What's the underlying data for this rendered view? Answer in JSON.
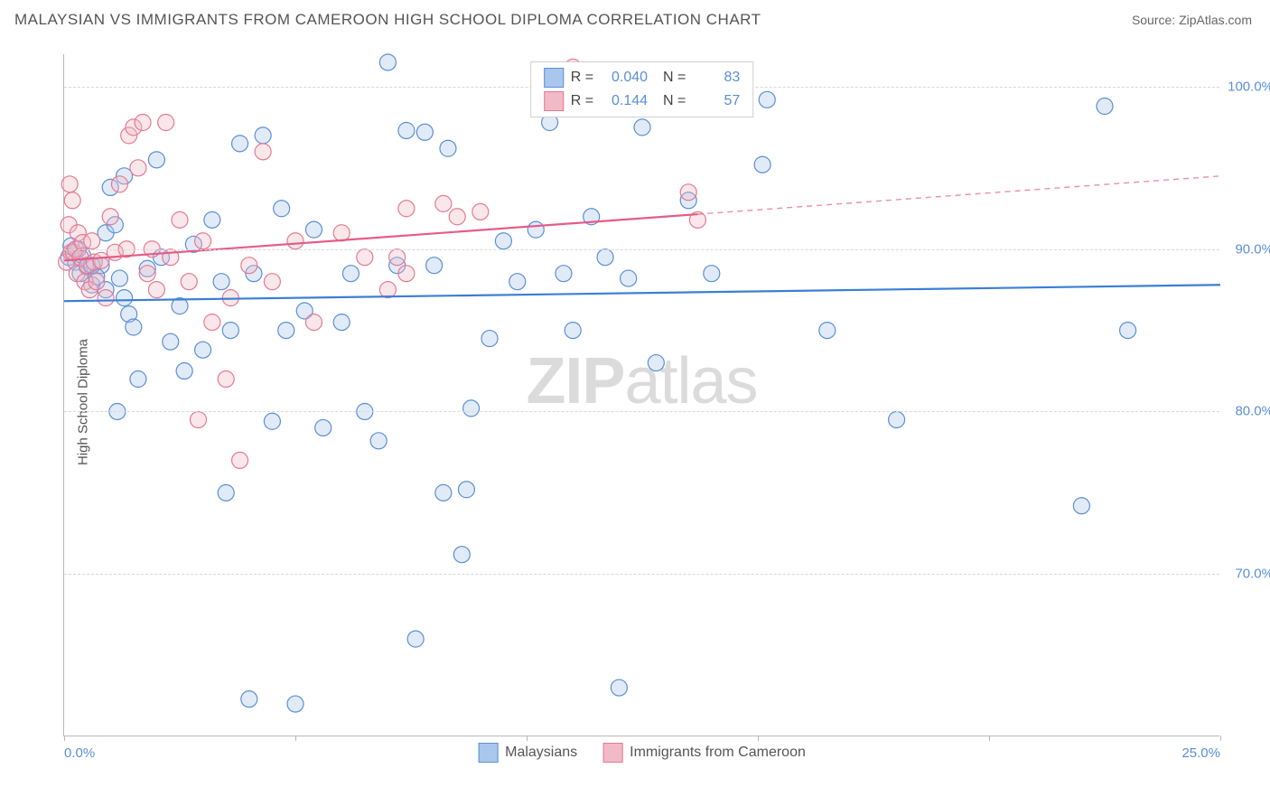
{
  "header": {
    "title": "MALAYSIAN VS IMMIGRANTS FROM CAMEROON HIGH SCHOOL DIPLOMA CORRELATION CHART",
    "source": "Source: ZipAtlas.com"
  },
  "watermark": {
    "part1": "ZIP",
    "part2": "atlas"
  },
  "chart": {
    "type": "scatter",
    "y_axis_label": "High School Diploma",
    "background_color": "#ffffff",
    "grid_color": "#d8d8d8",
    "axis_color": "#b8b8b8",
    "tick_label_color": "#5b8fd6",
    "tick_label_fontsize": 15,
    "xlim": [
      0,
      25
    ],
    "ylim": [
      60,
      102
    ],
    "x_ticks": [
      0,
      5,
      10,
      15,
      20,
      25
    ],
    "x_tick_labels_shown": {
      "0": "0.0%",
      "25": "25.0%"
    },
    "y_gridlines": [
      70,
      80,
      90,
      100
    ],
    "y_tick_labels": {
      "70": "70.0%",
      "80": "80.0%",
      "90": "90.0%",
      "100": "100.0%"
    },
    "marker_radius": 9,
    "marker_stroke_width": 1.2,
    "marker_fill_opacity": 0.35,
    "trend_line_width": 2.2,
    "series": [
      {
        "name": "Malaysians",
        "color_fill": "#a9c7ec",
        "color_stroke": "#5b8fd6",
        "trend_color": "#3b7fd6",
        "r": "0.040",
        "n": "83",
        "trend": {
          "x1": 0,
          "y1": 86.8,
          "x2": 25,
          "y2": 87.8,
          "solid_end_x": 25
        },
        "points": [
          [
            0.1,
            89.5
          ],
          [
            0.15,
            90.2
          ],
          [
            0.2,
            89.8
          ],
          [
            0.25,
            89.2
          ],
          [
            0.3,
            90.0
          ],
          [
            0.35,
            88.5
          ],
          [
            0.4,
            89.6
          ],
          [
            0.5,
            88.9
          ],
          [
            0.6,
            87.8
          ],
          [
            0.8,
            89.0
          ],
          [
            0.9,
            91.0
          ],
          [
            1.0,
            93.8
          ],
          [
            1.1,
            91.5
          ],
          [
            1.2,
            88.2
          ],
          [
            1.3,
            94.5
          ],
          [
            1.4,
            86.0
          ],
          [
            1.5,
            85.2
          ],
          [
            1.6,
            82.0
          ],
          [
            1.8,
            88.8
          ],
          [
            2.0,
            95.5
          ],
          [
            2.1,
            89.5
          ],
          [
            2.3,
            84.3
          ],
          [
            2.5,
            86.5
          ],
          [
            2.6,
            82.5
          ],
          [
            2.8,
            90.3
          ],
          [
            3.0,
            83.8
          ],
          [
            3.2,
            91.8
          ],
          [
            3.4,
            88.0
          ],
          [
            3.5,
            75.0
          ],
          [
            3.6,
            85.0
          ],
          [
            3.8,
            96.5
          ],
          [
            4.0,
            62.3
          ],
          [
            4.1,
            88.5
          ],
          [
            4.3,
            97.0
          ],
          [
            4.5,
            79.4
          ],
          [
            4.7,
            92.5
          ],
          [
            4.8,
            85.0
          ],
          [
            5.0,
            62.0
          ],
          [
            5.2,
            86.2
          ],
          [
            5.4,
            91.2
          ],
          [
            5.6,
            79.0
          ],
          [
            6.0,
            85.5
          ],
          [
            6.2,
            88.5
          ],
          [
            6.5,
            80.0
          ],
          [
            6.8,
            78.2
          ],
          [
            7.0,
            101.5
          ],
          [
            7.2,
            89.0
          ],
          [
            7.4,
            97.3
          ],
          [
            7.6,
            66.0
          ],
          [
            7.8,
            97.2
          ],
          [
            8.0,
            89.0
          ],
          [
            8.2,
            75.0
          ],
          [
            8.3,
            96.2
          ],
          [
            8.6,
            71.2
          ],
          [
            8.8,
            80.2
          ],
          [
            8.7,
            75.2
          ],
          [
            9.2,
            84.5
          ],
          [
            9.5,
            90.5
          ],
          [
            9.8,
            88.0
          ],
          [
            10.2,
            91.2
          ],
          [
            10.5,
            97.8
          ],
          [
            10.8,
            88.5
          ],
          [
            11.0,
            85.0
          ],
          [
            11.4,
            92.0
          ],
          [
            11.7,
            89.5
          ],
          [
            12.0,
            63.0
          ],
          [
            12.2,
            88.2
          ],
          [
            12.8,
            83.0
          ],
          [
            12.5,
            97.5
          ],
          [
            13.5,
            93.0
          ],
          [
            14.0,
            88.5
          ],
          [
            15.1,
            95.2
          ],
          [
            15.2,
            99.2
          ],
          [
            16.5,
            85.0
          ],
          [
            18.0,
            79.5
          ],
          [
            22.0,
            74.2
          ],
          [
            22.5,
            98.8
          ],
          [
            23.0,
            85.0
          ],
          [
            0.6,
            89.0
          ],
          [
            0.7,
            88.3
          ],
          [
            0.9,
            87.5
          ],
          [
            1.3,
            87.0
          ],
          [
            1.15,
            80.0
          ]
        ]
      },
      {
        "name": "Immigrants from Cameroon",
        "color_fill": "#f2b9c6",
        "color_stroke": "#e47a94",
        "trend_color": "#e45d87",
        "r": "0.144",
        "n": "57",
        "trend": {
          "x1": 0,
          "y1": 89.3,
          "x2": 25,
          "y2": 94.5,
          "solid_end_x": 13.7
        },
        "points": [
          [
            0.05,
            89.2
          ],
          [
            0.1,
            91.5
          ],
          [
            0.12,
            94.0
          ],
          [
            0.15,
            89.8
          ],
          [
            0.18,
            93.0
          ],
          [
            0.2,
            89.8
          ],
          [
            0.25,
            90.0
          ],
          [
            0.28,
            88.5
          ],
          [
            0.3,
            91.0
          ],
          [
            0.35,
            89.5
          ],
          [
            0.4,
            90.4
          ],
          [
            0.45,
            88.0
          ],
          [
            0.5,
            89.0
          ],
          [
            0.55,
            87.5
          ],
          [
            0.6,
            90.5
          ],
          [
            0.65,
            89.2
          ],
          [
            0.7,
            88.0
          ],
          [
            0.8,
            89.3
          ],
          [
            0.9,
            87.0
          ],
          [
            1.0,
            92.0
          ],
          [
            1.1,
            89.8
          ],
          [
            1.2,
            94.0
          ],
          [
            1.35,
            90.0
          ],
          [
            1.4,
            97.0
          ],
          [
            1.5,
            97.5
          ],
          [
            1.6,
            95.0
          ],
          [
            1.7,
            97.8
          ],
          [
            1.8,
            88.5
          ],
          [
            1.9,
            90.0
          ],
          [
            2.0,
            87.5
          ],
          [
            2.2,
            97.8
          ],
          [
            2.3,
            89.5
          ],
          [
            2.5,
            91.8
          ],
          [
            2.7,
            88.0
          ],
          [
            2.9,
            79.5
          ],
          [
            3.0,
            90.5
          ],
          [
            3.2,
            85.5
          ],
          [
            3.5,
            82.0
          ],
          [
            3.6,
            87.0
          ],
          [
            3.8,
            77.0
          ],
          [
            4.0,
            89.0
          ],
          [
            4.3,
            96.0
          ],
          [
            4.5,
            88.0
          ],
          [
            5.0,
            90.5
          ],
          [
            5.4,
            85.5
          ],
          [
            6.0,
            91.0
          ],
          [
            6.5,
            89.5
          ],
          [
            7.0,
            87.5
          ],
          [
            7.2,
            89.5
          ],
          [
            7.4,
            92.5
          ],
          [
            7.4,
            88.5
          ],
          [
            8.2,
            92.8
          ],
          [
            8.5,
            92.0
          ],
          [
            9.0,
            92.3
          ],
          [
            11.0,
            101.2
          ],
          [
            13.5,
            93.5
          ],
          [
            13.7,
            91.8
          ]
        ]
      }
    ]
  },
  "bottom_legend": {
    "label1": "Malaysians",
    "label2": "Immigrants from Cameroon"
  }
}
